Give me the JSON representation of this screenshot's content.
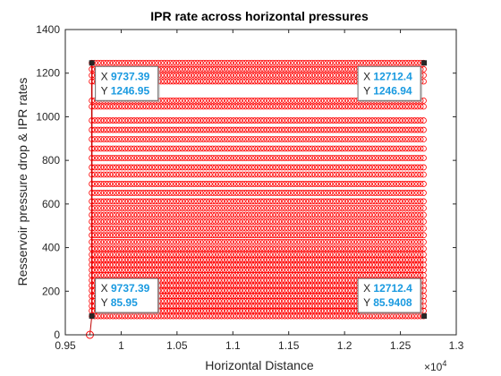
{
  "chart_data": {
    "type": "scatter",
    "title": "IPR rate across horizontal pressures",
    "xlabel": "Horizontal Distance",
    "ylabel": "Resservoir pressure drop & IPR rates",
    "x_exponent_label": "×10",
    "x_exponent": "4",
    "xlim": [
      9500,
      13000
    ],
    "ylim": [
      0,
      1400
    ],
    "x_ticks": [
      9500,
      10000,
      10500,
      11000,
      11500,
      12000,
      12500,
      13000
    ],
    "x_tick_labels": [
      "0.95",
      "1",
      "1.05",
      "1.1",
      "1.15",
      "1.2",
      "1.25",
      "1.3"
    ],
    "y_ticks": [
      0,
      200,
      400,
      600,
      800,
      1000,
      1200,
      1400
    ],
    "y_tick_labels": [
      "0",
      "200",
      "400",
      "600",
      "800",
      "1000",
      "1200",
      "1400"
    ],
    "grid": false,
    "box": true,
    "series": [
      {
        "marker": "circle",
        "color": "#ff0000",
        "line_color": "#c00000",
        "x_start": 9737.39,
        "x_end": 12712.4,
        "x_step": 27,
        "y_levels": [
          1246.95,
          1218,
          1190,
          1162,
          1074,
          1047,
          983,
          940,
          897,
          854,
          811,
          768,
          735,
          692,
          651,
          612,
          581,
          550,
          519,
          488,
          457,
          426,
          395,
          368,
          344,
          321,
          297,
          273,
          250,
          226,
          203,
          178,
          155,
          132,
          110,
          85.95
        ],
        "isolated_point": {
          "x": 9720,
          "y": 0
        },
        "left_tails": [
          {
            "x": 9737.39,
            "y": 155
          },
          {
            "x": 9737.39,
            "y": 120
          },
          {
            "x": 9737.39,
            "y": 85.95
          }
        ]
      }
    ],
    "datatips": [
      {
        "x": 9737.39,
        "y": 1246.95,
        "x_text": "9737.39",
        "y_text": "1246.95",
        "box_side": "right-below"
      },
      {
        "x": 12712.4,
        "y": 1246.94,
        "x_text": "12712.4",
        "y_text": "1246.94",
        "box_side": "left-below"
      },
      {
        "x": 9737.39,
        "y": 85.95,
        "x_text": "9737.39",
        "y_text": "85.95",
        "box_side": "right-above"
      },
      {
        "x": 12712.4,
        "y": 85.9408,
        "x_text": "12712.4",
        "y_text": "85.9408",
        "box_side": "left-above"
      }
    ],
    "datatip_labels": {
      "x": "X",
      "y": "Y"
    },
    "datatip_value_color": "#1a9ae0"
  }
}
